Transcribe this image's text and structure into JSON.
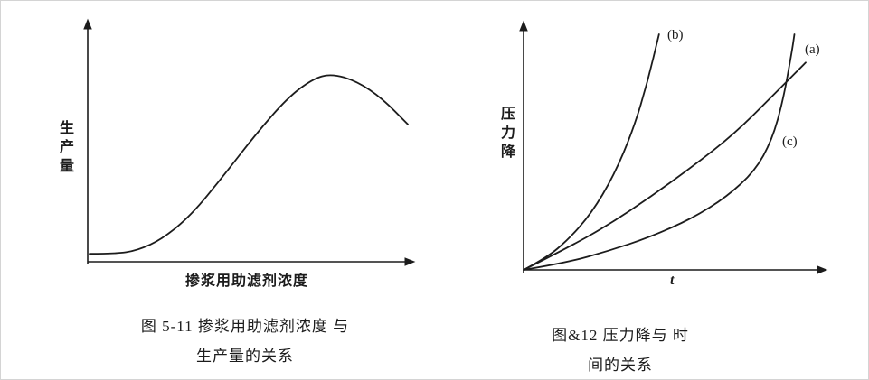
{
  "page": {
    "background": "#ffffff",
    "ink_color": "#1c1c1c"
  },
  "figure_left": {
    "y_axis_label": "生产量",
    "x_axis_label": "掺浆用助滤剂浓度",
    "caption_line1": "图 5-11 掺浆用助滤剂浓度 与",
    "caption_line2": "生产量的关系"
  },
  "figure_right": {
    "y_axis_label": "压力降",
    "x_axis_label": "t",
    "caption_line1": "图&12 压力降与 时",
    "caption_line2": "间的关系"
  },
  "chart_data": [
    {
      "type": "line",
      "title": "图 5-11 掺浆用助滤剂浓度 与 生产量的关系",
      "xlabel": "掺浆用助滤剂浓度",
      "ylabel": "生产量",
      "x_range": [
        0,
        1
      ],
      "y_range": [
        0,
        1
      ],
      "grid": false,
      "ticks": "none",
      "axes_style": "arrow-ended sketch axes",
      "series": [
        {
          "name": "production-curve",
          "points": [
            [
              0,
              0.02
            ],
            [
              0.08,
              0.02
            ],
            [
              0.15,
              0.035
            ],
            [
              0.23,
              0.09
            ],
            [
              0.32,
              0.2
            ],
            [
              0.42,
              0.38
            ],
            [
              0.52,
              0.57
            ],
            [
              0.62,
              0.74
            ],
            [
              0.7,
              0.83
            ],
            [
              0.76,
              0.855
            ],
            [
              0.84,
              0.82
            ],
            [
              0.92,
              0.74
            ],
            [
              1,
              0.62
            ]
          ]
        }
      ]
    },
    {
      "type": "line",
      "title": "图&12 压力降与 时间的关系",
      "xlabel": "t",
      "ylabel": "压力降",
      "x_range": [
        0,
        1
      ],
      "y_range": [
        0,
        1
      ],
      "grid": false,
      "ticks": "none",
      "axes_style": "arrow-ended sketch axes",
      "series": [
        {
          "name": "(b)",
          "points": [
            [
              0,
              0
            ],
            [
              0.08,
              0.05
            ],
            [
              0.16,
              0.13
            ],
            [
              0.24,
              0.24
            ],
            [
              0.32,
              0.4
            ],
            [
              0.39,
              0.6
            ],
            [
              0.44,
              0.8
            ],
            [
              0.48,
              1
            ]
          ]
        },
        {
          "name": "(a)",
          "points": [
            [
              0,
              0
            ],
            [
              0.15,
              0.09
            ],
            [
              0.3,
              0.19
            ],
            [
              0.45,
              0.31
            ],
            [
              0.6,
              0.44
            ],
            [
              0.75,
              0.58
            ],
            [
              0.9,
              0.76
            ],
            [
              1,
              0.88
            ]
          ]
        },
        {
          "name": "(c)",
          "points": [
            [
              0,
              0
            ],
            [
              0.15,
              0.03
            ],
            [
              0.3,
              0.08
            ],
            [
              0.45,
              0.14
            ],
            [
              0.6,
              0.22
            ],
            [
              0.72,
              0.31
            ],
            [
              0.82,
              0.42
            ],
            [
              0.88,
              0.55
            ],
            [
              0.92,
              0.72
            ],
            [
              0.95,
              0.92
            ],
            [
              0.96,
              1
            ]
          ]
        }
      ]
    }
  ]
}
